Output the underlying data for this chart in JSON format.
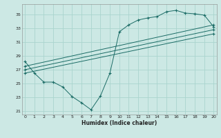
{
  "xlabel": "Humidex (Indice chaleur)",
  "bg_color": "#cce8e4",
  "grid_color": "#aad4ce",
  "line_color": "#1a6b65",
  "xlim": [
    -0.3,
    20.3
  ],
  "ylim": [
    20.5,
    36.5
  ],
  "xticks": [
    0,
    1,
    2,
    3,
    4,
    5,
    6,
    7,
    8,
    9,
    10,
    11,
    12,
    13,
    14,
    15,
    16,
    17,
    18,
    19,
    20
  ],
  "yticks": [
    21,
    23,
    25,
    27,
    29,
    31,
    33,
    35
  ],
  "series1_x": [
    0,
    1,
    2,
    3,
    4,
    5,
    6,
    7,
    8,
    9,
    10,
    11,
    12,
    13,
    14,
    15,
    16,
    17,
    18,
    19,
    20
  ],
  "series1_y": [
    28.2,
    26.5,
    25.2,
    25.2,
    24.5,
    23.1,
    22.2,
    21.2,
    23.2,
    26.5,
    32.5,
    33.5,
    34.2,
    34.5,
    34.7,
    35.4,
    35.6,
    35.2,
    35.1,
    34.9,
    33.2
  ],
  "series2_x": [
    0,
    20
  ],
  "series2_y": [
    27.5,
    33.5
  ],
  "series3_x": [
    0,
    20
  ],
  "series3_y": [
    27.0,
    32.8
  ],
  "series4_x": [
    0,
    20
  ],
  "series4_y": [
    26.5,
    32.2
  ]
}
